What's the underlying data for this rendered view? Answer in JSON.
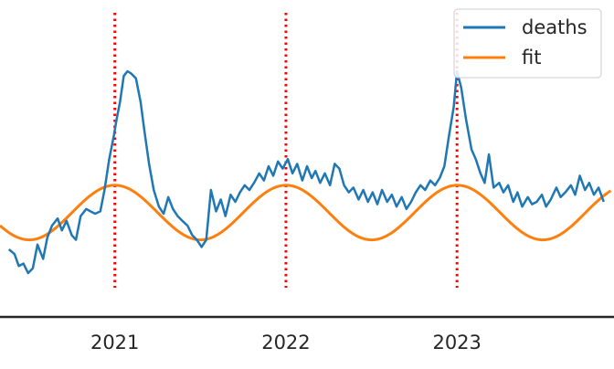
{
  "chart_data": {
    "type": "line",
    "title": "",
    "xlabel": "",
    "ylabel": "",
    "x_tick_labels": [
      "2021",
      "2022",
      "2023"
    ],
    "x_range": [
      "2020-05",
      "2023-11"
    ],
    "y_range": [
      0,
      100
    ],
    "grid": false,
    "legend": {
      "position": "top-right",
      "entries": [
        "deaths",
        "fit"
      ]
    },
    "vertical_markers": {
      "style": "dotted",
      "color": "#ff0000",
      "x": [
        "2021-01-01",
        "2022-01-01",
        "2023-01-01"
      ]
    },
    "colors": {
      "deaths": "#1f77b4",
      "fit": "#ff7f0e",
      "markers": "#ff0000",
      "axis": "#262626"
    },
    "series": [
      {
        "name": "deaths",
        "color": "#1f77b4",
        "points": [
          [
            "2020-05-20",
            20
          ],
          [
            "2020-06-01",
            18
          ],
          [
            "2020-06-10",
            13
          ],
          [
            "2020-06-20",
            14
          ],
          [
            "2020-06-30",
            10
          ],
          [
            "2020-07-10",
            12
          ],
          [
            "2020-07-20",
            22
          ],
          [
            "2020-08-01",
            16
          ],
          [
            "2020-08-10",
            25
          ],
          [
            "2020-08-20",
            30
          ],
          [
            "2020-09-01",
            33
          ],
          [
            "2020-09-10",
            28
          ],
          [
            "2020-09-20",
            32
          ],
          [
            "2020-10-01",
            26
          ],
          [
            "2020-10-10",
            24
          ],
          [
            "2020-10-20",
            34
          ],
          [
            "2020-11-01",
            37
          ],
          [
            "2020-11-10",
            36
          ],
          [
            "2020-11-20",
            35
          ],
          [
            "2020-12-01",
            36
          ],
          [
            "2020-12-10",
            45
          ],
          [
            "2020-12-20",
            58
          ],
          [
            "2020-12-30",
            68
          ],
          [
            "2021-01-05",
            75
          ],
          [
            "2021-01-12",
            82
          ],
          [
            "2021-01-20",
            93
          ],
          [
            "2021-01-28",
            95
          ],
          [
            "2021-02-05",
            94
          ],
          [
            "2021-02-15",
            92
          ],
          [
            "2021-02-25",
            82
          ],
          [
            "2021-03-05",
            70
          ],
          [
            "2021-03-15",
            56
          ],
          [
            "2021-03-25",
            45
          ],
          [
            "2021-04-05",
            38
          ],
          [
            "2021-04-15",
            35
          ],
          [
            "2021-04-25",
            42
          ],
          [
            "2021-05-05",
            37
          ],
          [
            "2021-05-15",
            34
          ],
          [
            "2021-05-25",
            32
          ],
          [
            "2021-06-05",
            30
          ],
          [
            "2021-06-15",
            26
          ],
          [
            "2021-06-25",
            24
          ],
          [
            "2021-07-05",
            21
          ],
          [
            "2021-07-15",
            24
          ],
          [
            "2021-07-25",
            45
          ],
          [
            "2021-08-05",
            36
          ],
          [
            "2021-08-15",
            41
          ],
          [
            "2021-08-25",
            34
          ],
          [
            "2021-09-05",
            43
          ],
          [
            "2021-09-15",
            40
          ],
          [
            "2021-09-25",
            44
          ],
          [
            "2021-10-05",
            47
          ],
          [
            "2021-10-15",
            45
          ],
          [
            "2021-10-25",
            48
          ],
          [
            "2021-11-05",
            52
          ],
          [
            "2021-11-15",
            49
          ],
          [
            "2021-11-25",
            55
          ],
          [
            "2021-12-05",
            51
          ],
          [
            "2021-12-15",
            57
          ],
          [
            "2021-12-25",
            54
          ],
          [
            "2022-01-05",
            58
          ],
          [
            "2022-01-15",
            52
          ],
          [
            "2022-01-25",
            56
          ],
          [
            "2022-02-05",
            49
          ],
          [
            "2022-02-15",
            55
          ],
          [
            "2022-02-25",
            50
          ],
          [
            "2022-03-05",
            53
          ],
          [
            "2022-03-15",
            48
          ],
          [
            "2022-03-25",
            52
          ],
          [
            "2022-04-05",
            47
          ],
          [
            "2022-04-15",
            56
          ],
          [
            "2022-04-25",
            54
          ],
          [
            "2022-05-05",
            47
          ],
          [
            "2022-05-15",
            44
          ],
          [
            "2022-05-25",
            46
          ],
          [
            "2022-06-05",
            41
          ],
          [
            "2022-06-15",
            45
          ],
          [
            "2022-06-25",
            40
          ],
          [
            "2022-07-05",
            44
          ],
          [
            "2022-07-15",
            39
          ],
          [
            "2022-07-25",
            45
          ],
          [
            "2022-08-05",
            40
          ],
          [
            "2022-08-15",
            43
          ],
          [
            "2022-08-25",
            38
          ],
          [
            "2022-09-05",
            42
          ],
          [
            "2022-09-15",
            37
          ],
          [
            "2022-09-25",
            40
          ],
          [
            "2022-10-05",
            44
          ],
          [
            "2022-10-15",
            47
          ],
          [
            "2022-10-25",
            45
          ],
          [
            "2022-11-05",
            49
          ],
          [
            "2022-11-15",
            47
          ],
          [
            "2022-11-25",
            50
          ],
          [
            "2022-12-05",
            55
          ],
          [
            "2022-12-15",
            68
          ],
          [
            "2022-12-25",
            80
          ],
          [
            "2023-01-01",
            95
          ],
          [
            "2023-01-10",
            88
          ],
          [
            "2023-01-20",
            75
          ],
          [
            "2023-02-01",
            62
          ],
          [
            "2023-02-10",
            58
          ],
          [
            "2023-02-20",
            52
          ],
          [
            "2023-03-01",
            48
          ],
          [
            "2023-03-10",
            60
          ],
          [
            "2023-03-20",
            46
          ],
          [
            "2023-04-01",
            48
          ],
          [
            "2023-04-10",
            44
          ],
          [
            "2023-04-20",
            47
          ],
          [
            "2023-05-01",
            40
          ],
          [
            "2023-05-10",
            44
          ],
          [
            "2023-05-20",
            38
          ],
          [
            "2023-06-01",
            42
          ],
          [
            "2023-06-10",
            39
          ],
          [
            "2023-06-20",
            40
          ],
          [
            "2023-07-01",
            43
          ],
          [
            "2023-07-10",
            38
          ],
          [
            "2023-07-20",
            41
          ],
          [
            "2023-08-01",
            46
          ],
          [
            "2023-08-10",
            42
          ],
          [
            "2023-08-20",
            44
          ],
          [
            "2023-09-01",
            47
          ],
          [
            "2023-09-10",
            43
          ],
          [
            "2023-09-20",
            51
          ],
          [
            "2023-10-01",
            45
          ],
          [
            "2023-10-10",
            48
          ],
          [
            "2023-10-20",
            43
          ],
          [
            "2023-10-30",
            46
          ],
          [
            "2023-11-10",
            40
          ]
        ]
      },
      {
        "name": "fit",
        "color": "#ff7f0e",
        "model": "sinusoid",
        "mean": 35.5,
        "amplitude": 11.5,
        "period_years": 1,
        "peak_date": "2021-01-01",
        "x_range": [
          "2020-05-01",
          "2023-11-25"
        ]
      }
    ]
  }
}
